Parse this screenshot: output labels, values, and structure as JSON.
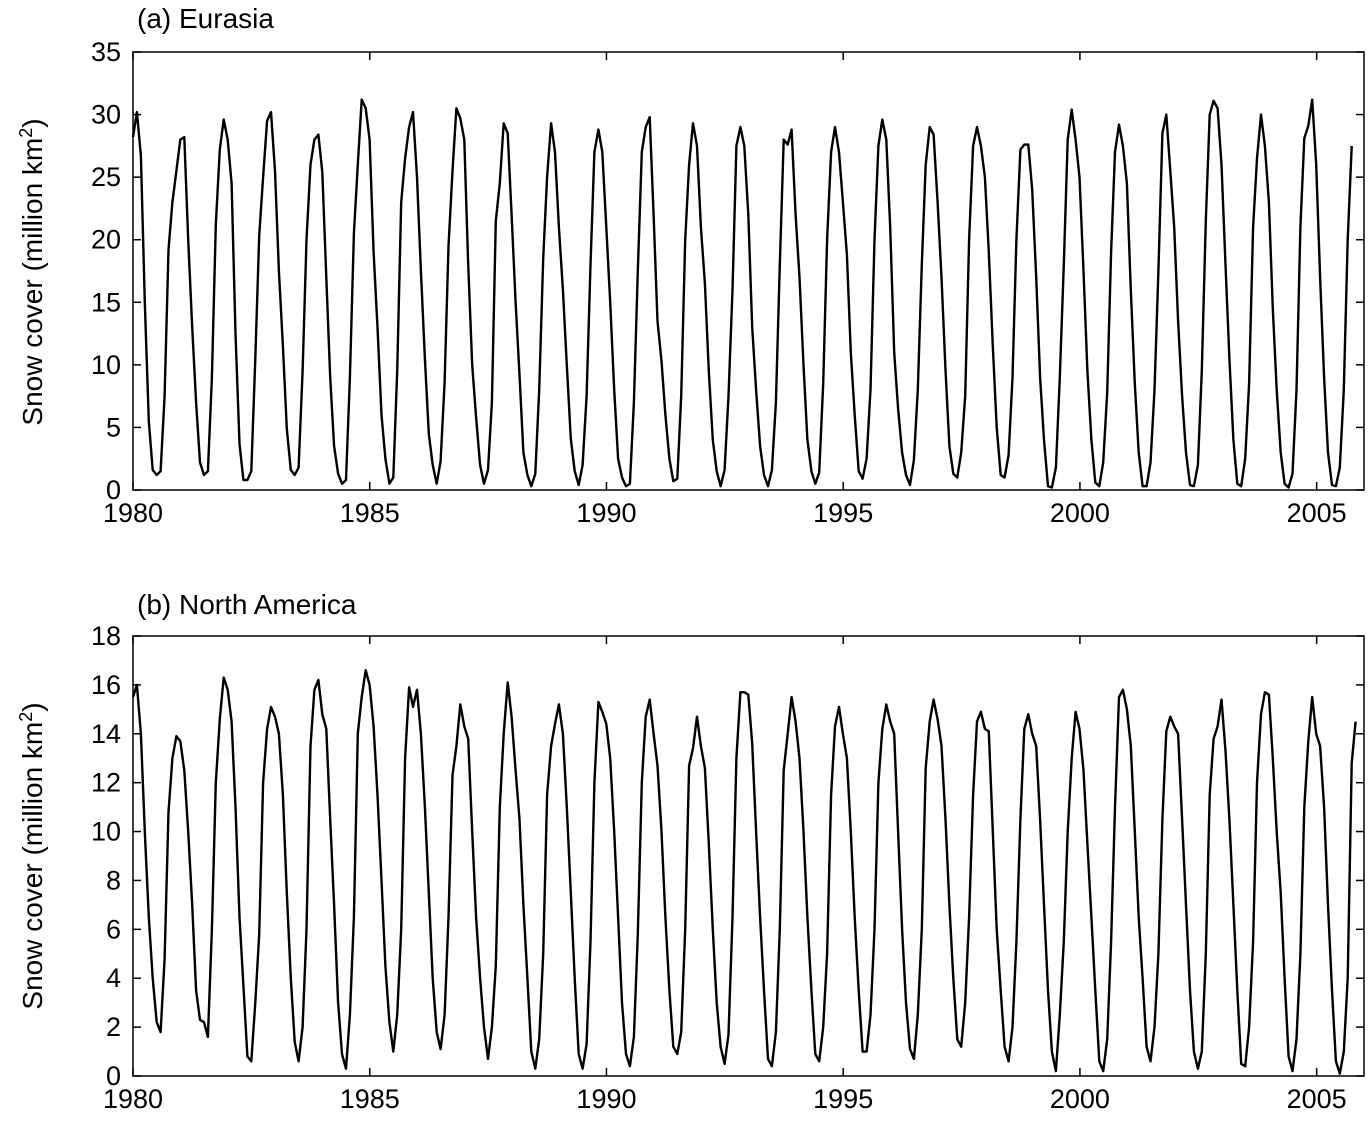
{
  "chart_data": [
    {
      "type": "line",
      "title": "(a) Eurasia",
      "ylabel": "Snow cover (million km",
      "ylabel_sup": "2",
      "ylabel_close": ")",
      "xlim": [
        1980,
        2006
      ],
      "ylim": [
        0,
        35
      ],
      "xticks": [
        1980,
        1985,
        1990,
        1995,
        2000,
        2005
      ],
      "yticks": [
        0,
        5,
        10,
        15,
        20,
        25,
        30,
        35
      ],
      "series": [
        {
          "x_start": 1980.0,
          "x_step": 0.0833,
          "values": [
            28.2,
            30.2,
            26.7,
            15.0,
            5.5,
            1.6,
            1.2,
            1.5,
            7.5,
            19.2,
            23.0,
            25.5,
            28.0,
            28.2,
            20.0,
            13.0,
            7.0,
            2.2,
            1.2,
            1.5,
            9.0,
            21.2,
            27.2,
            29.6,
            28.0,
            24.5,
            12.5,
            3.7,
            0.8,
            0.8,
            1.5,
            10.5,
            20.3,
            25.0,
            29.5,
            30.2,
            25.5,
            17.5,
            11.5,
            4.9,
            1.6,
            1.2,
            1.8,
            9.5,
            20.0,
            26.0,
            28.0,
            28.4,
            25.4,
            17.0,
            9.0,
            3.5,
            1.3,
            0.5,
            0.8,
            9.0,
            20.5,
            26.0,
            31.2,
            30.5,
            28.0,
            19.0,
            13.0,
            6.0,
            2.5,
            0.5,
            1.0,
            9.5,
            23.0,
            26.5,
            29.0,
            30.2,
            25.0,
            17.5,
            10.5,
            4.5,
            2.0,
            0.5,
            2.3,
            8.6,
            19.5,
            25.5,
            30.5,
            29.7,
            28.0,
            18.0,
            10.0,
            5.8,
            2.0,
            0.5,
            1.6,
            7.0,
            21.5,
            24.5,
            29.3,
            28.5,
            22.0,
            15.0,
            9.2,
            3.0,
            1.2,
            0.3,
            1.3,
            8.0,
            18.5,
            25.0,
            29.3,
            27.0,
            21.0,
            16.0,
            10.0,
            4.1,
            1.5,
            0.4,
            2.0,
            7.5,
            18.0,
            27.0,
            28.8,
            27.0,
            21.0,
            15.0,
            8.0,
            2.5,
            1.0,
            0.3,
            0.5,
            7.0,
            17.5,
            27.0,
            29.0,
            29.8,
            22.0,
            13.5,
            10.3,
            6.0,
            2.5,
            0.7,
            0.9,
            7.5,
            20.0,
            26.0,
            29.3,
            27.5,
            21.0,
            16.5,
            9.5,
            4.0,
            1.5,
            0.3,
            1.6,
            7.5,
            16.0,
            27.5,
            29.0,
            27.5,
            22.0,
            13.0,
            8.0,
            3.5,
            1.2,
            0.3,
            1.6,
            7.0,
            18.0,
            28.0,
            27.6,
            28.8,
            22.0,
            17.0,
            10.0,
            4.0,
            1.5,
            0.5,
            1.4,
            8.5,
            20.0,
            27.0,
            29.0,
            27.0,
            23.0,
            18.8,
            11.0,
            6.0,
            1.5,
            0.9,
            2.5,
            8.0,
            20.0,
            27.5,
            29.6,
            28.0,
            21.0,
            11.0,
            6.5,
            3.0,
            1.2,
            0.4,
            2.4,
            8.0,
            18.0,
            26.0,
            29.0,
            28.4,
            23.0,
            17.0,
            9.6,
            3.5,
            1.3,
            1.0,
            3.0,
            7.5,
            20.0,
            27.5,
            29.0,
            27.5,
            25.0,
            19.0,
            11.5,
            5.0,
            1.2,
            1.0,
            2.8,
            9.0,
            20.0,
            27.2,
            27.6,
            27.6,
            24.0,
            17.0,
            9.0,
            4.0,
            0.3,
            0.2,
            1.8,
            9.0,
            18.0,
            28.0,
            30.4,
            28.0,
            25.0,
            17.5,
            9.5,
            4.0,
            0.6,
            0.3,
            2.2,
            7.8,
            19.0,
            27.0,
            29.2,
            27.5,
            24.5,
            16.0,
            8.5,
            3.0,
            0.3,
            0.3,
            2.2,
            8.0,
            17.5,
            28.5,
            30.0,
            25.5,
            21.0,
            13.5,
            7.5,
            3.0,
            0.4,
            0.3,
            2.0,
            9.5,
            21.5,
            30.0,
            31.1,
            30.5,
            26.0,
            18.0,
            10.5,
            4.0,
            0.5,
            0.3,
            2.5,
            8.5,
            21.0,
            26.5,
            30.0,
            27.5,
            23.0,
            14.5,
            8.0,
            3.0,
            0.5,
            0.2,
            1.3,
            8.0,
            21.0,
            28.1,
            29.1,
            31.2,
            26.0,
            17.0,
            9.0,
            3.0,
            0.4,
            0.3,
            1.8,
            8.0,
            20.0,
            27.5
          ]
        }
      ]
    },
    {
      "type": "line",
      "title": "(b) North America",
      "ylabel": "Snow cover (million km",
      "ylabel_sup": "2",
      "ylabel_close": ")",
      "xlim": [
        1980,
        2006
      ],
      "ylim": [
        0,
        18
      ],
      "xticks": [
        1980,
        1985,
        1990,
        1995,
        2000,
        2005
      ],
      "yticks": [
        0,
        2,
        4,
        6,
        8,
        10,
        12,
        14,
        16,
        18
      ],
      "series": [
        {
          "x_start": 1980.0,
          "x_step": 0.0833,
          "values": [
            15.5,
            16.0,
            14.0,
            10.0,
            6.5,
            4.0,
            2.2,
            1.8,
            4.8,
            10.8,
            13.0,
            13.9,
            13.7,
            12.5,
            10.0,
            7.0,
            3.5,
            2.3,
            2.2,
            1.6,
            6.0,
            12.0,
            14.6,
            16.3,
            15.8,
            14.5,
            11.0,
            6.5,
            3.7,
            0.8,
            0.6,
            3.0,
            5.8,
            12.0,
            14.2,
            15.1,
            14.7,
            14.0,
            11.5,
            7.5,
            4.0,
            1.4,
            0.6,
            2.0,
            6.0,
            13.5,
            15.8,
            16.2,
            14.8,
            14.2,
            10.5,
            7.0,
            3.0,
            0.9,
            0.3,
            2.5,
            6.5,
            14.0,
            15.5,
            16.6,
            16.0,
            14.3,
            11.5,
            8.0,
            4.5,
            2.2,
            1.0,
            2.5,
            6.0,
            13.0,
            15.9,
            15.1,
            15.8,
            14.0,
            11.0,
            7.5,
            4.0,
            1.8,
            1.1,
            2.5,
            6.5,
            12.3,
            13.5,
            15.2,
            14.3,
            13.8,
            10.0,
            6.5,
            4.0,
            2.0,
            0.7,
            2.0,
            4.5,
            11.0,
            14.0,
            16.1,
            14.7,
            12.5,
            10.5,
            7.0,
            4.0,
            1.0,
            0.3,
            1.5,
            5.0,
            11.5,
            13.5,
            14.4,
            15.2,
            14.0,
            11.0,
            7.5,
            4.0,
            0.9,
            0.3,
            1.3,
            5.5,
            12.0,
            15.3,
            14.9,
            14.4,
            13.0,
            10.0,
            6.5,
            3.0,
            0.9,
            0.4,
            1.6,
            5.8,
            12.0,
            14.7,
            15.4,
            14.0,
            12.7,
            10.0,
            6.5,
            3.5,
            1.2,
            0.9,
            1.8,
            6.0,
            12.7,
            13.4,
            14.7,
            13.5,
            12.6,
            9.5,
            6.0,
            3.0,
            1.2,
            0.5,
            1.7,
            6.5,
            13.0,
            15.7,
            15.7,
            15.6,
            13.6,
            10.0,
            6.5,
            3.5,
            0.7,
            0.4,
            1.8,
            6.0,
            12.5,
            14.0,
            15.5,
            14.5,
            13.0,
            10.0,
            6.5,
            3.5,
            0.9,
            0.6,
            2.0,
            5.0,
            11.5,
            14.3,
            15.1,
            14.0,
            13.0,
            10.0,
            6.5,
            3.5,
            1.0,
            1.0,
            2.5,
            6.0,
            12.0,
            14.2,
            15.2,
            14.5,
            14.0,
            10.0,
            6.0,
            3.0,
            1.1,
            0.7,
            2.5,
            6.0,
            12.6,
            14.5,
            15.4,
            14.6,
            13.5,
            10.5,
            7.0,
            4.0,
            1.5,
            1.2,
            3.0,
            6.5,
            11.5,
            14.5,
            14.9,
            14.2,
            14.1,
            10.0,
            6.0,
            3.5,
            1.2,
            0.6,
            2.0,
            5.5,
            10.5,
            14.2,
            14.8,
            14.0,
            13.5,
            10.5,
            7.0,
            3.5,
            1.0,
            0.2,
            2.5,
            5.5,
            10.0,
            13.0,
            14.9,
            14.2,
            12.5,
            9.5,
            6.5,
            3.5,
            0.6,
            0.2,
            1.5,
            5.5,
            11.0,
            15.5,
            15.8,
            15.0,
            13.5,
            10.0,
            6.5,
            4.0,
            1.2,
            0.6,
            2.0,
            5.0,
            10.5,
            14.1,
            14.7,
            14.3,
            14.0,
            10.5,
            7.0,
            3.5,
            1.0,
            0.3,
            1.0,
            5.0,
            11.5,
            13.8,
            14.3,
            15.4,
            13.3,
            10.5,
            7.0,
            3.5,
            0.5,
            0.4,
            2.0,
            5.5,
            12.0,
            14.8,
            15.7,
            15.6,
            13.0,
            10.0,
            7.5,
            4.0,
            0.8,
            0.2,
            1.5,
            5.0,
            11.0,
            13.7,
            15.5,
            14.0,
            13.5,
            11.0,
            7.0,
            3.5,
            0.6,
            0.1,
            1.0,
            4.0,
            12.8,
            14.5
          ]
        }
      ]
    }
  ]
}
